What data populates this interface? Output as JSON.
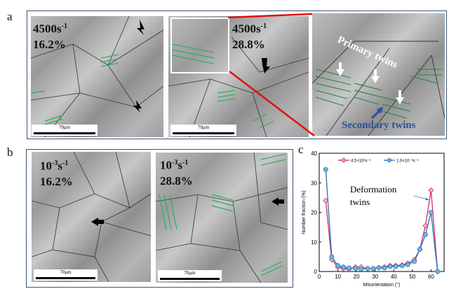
{
  "panels": {
    "a": {
      "label": "a",
      "images": [
        {
          "rate": "4500s",
          "rate_exp": "-1",
          "strain": "16.2%",
          "scale": "70μm"
        },
        {
          "rate": "4500s",
          "rate_exp": "-1",
          "strain": "28.8%",
          "scale": "70μm"
        }
      ],
      "zoom_annotations": {
        "primary": "Primary twins",
        "secondary": "Secondary twins"
      }
    },
    "b": {
      "label": "b",
      "images": [
        {
          "rate_base": "10",
          "rate_exp": "-3",
          "rate_unit": "s",
          "unit_exp": "-1",
          "strain": "16.2%",
          "scale": "70μm"
        },
        {
          "rate_base": "10",
          "rate_exp": "-3",
          "rate_unit": "s",
          "unit_exp": "-1",
          "strain": "28.8%",
          "scale": "70μm"
        }
      ]
    },
    "c": {
      "label": "c"
    }
  },
  "colors": {
    "twin_green": "#2fb05a",
    "highlight_red": "#e01010",
    "frame_blue": "#3a5478"
  },
  "chart_data": {
    "type": "line",
    "xlabel": "Misorientation (°)",
    "ylabel": "Number fraction (%)",
    "xlim": [
      0,
      65
    ],
    "ylim": [
      0,
      40
    ],
    "xticks": [
      0,
      10,
      20,
      30,
      40,
      50,
      60
    ],
    "yticks": [
      0,
      10,
      20,
      30,
      40
    ],
    "legend_position": "top",
    "annotation": "Deformation twins",
    "x": [
      3.5,
      6.7,
      10,
      13,
      16,
      19.5,
      22.5,
      26,
      29,
      32,
      35,
      38,
      41,
      44.5,
      47.5,
      51,
      54,
      57,
      60,
      63.5
    ],
    "series": [
      {
        "name": "4.5×10³s⁻¹",
        "color": "#d0306a",
        "marker": "diamond",
        "values": [
          24,
          4,
          1.5,
          1,
          0.8,
          1.5,
          1.5,
          1,
          1,
          1.3,
          1.5,
          2,
          2,
          2.2,
          2.8,
          4,
          7.5,
          15.5,
          27.5,
          0
        ]
      },
      {
        "name": "1.0×10⁻³s⁻¹",
        "color": "#2a6fb0",
        "marker": "circle",
        "values": [
          34.5,
          5,
          2,
          1.5,
          1.2,
          1,
          0.8,
          1,
          1,
          1.3,
          1.2,
          1.7,
          1.7,
          2,
          2.3,
          3.4,
          7.5,
          12.5,
          20,
          0
        ]
      }
    ]
  }
}
